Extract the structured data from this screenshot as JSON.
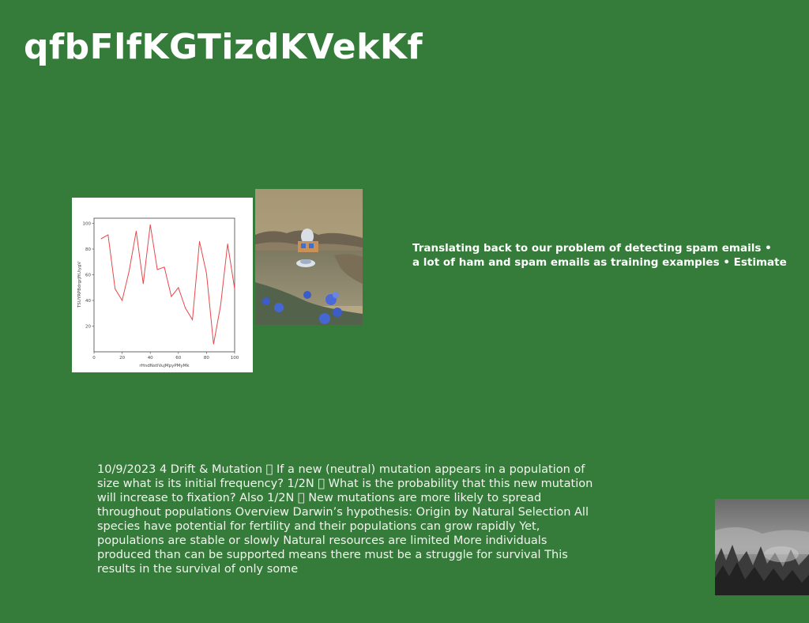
{
  "title": "qfbFlfKGTizdKVekKf",
  "highlight_text": {
    "line1": "Translating back to our problem of detecting spam emails •",
    "line2": "a lot of ham and spam emails as training examples • Estimate"
  },
  "body_text": "10/9/2023 4 Drift & Mutation \u0000 If a new (neutral) mutation appears in a population of size what is its initial frequency? 1/2N \u0000 What is the probability that this new mutation will increase to fixation? Also 1/2N \u0000 New mutations are more likely to spread throughout populations Overview Darwin’s hypothesis: Origin by Natural Selection All species have potential for fertility and their populations can grow rapidly Yet, populations are stable or slowly Natural resources are limited More individuals produced than can be supported means there must be a struggle for survival This results in the survival of only some",
  "images": {
    "pond": "miniature pond scene with dome and blue figures",
    "forest": "grayscale misty forest"
  },
  "chart_data": {
    "type": "line",
    "title": "",
    "xlabel": "rHndNstlVujMpyPMyMk",
    "ylabel": "TSUYRPBdrgrJftUiygV",
    "xlim": [
      0,
      100
    ],
    "ylim": [
      0,
      104
    ],
    "xticks": [
      0,
      20,
      40,
      60,
      80,
      100
    ],
    "yticks": [
      20,
      40,
      60,
      80,
      100
    ],
    "grid": false,
    "series": [
      {
        "color": "#e8474a",
        "x": [
          5,
          10,
          15,
          20,
          25,
          30,
          35,
          40,
          45,
          50,
          55,
          60,
          65,
          70,
          75,
          80,
          85,
          90,
          95,
          100
        ],
        "y": [
          88,
          91,
          49,
          40,
          63,
          94,
          53,
          99,
          64,
          66,
          43,
          50,
          34,
          25,
          86,
          61,
          6,
          36,
          84,
          49
        ]
      }
    ]
  }
}
